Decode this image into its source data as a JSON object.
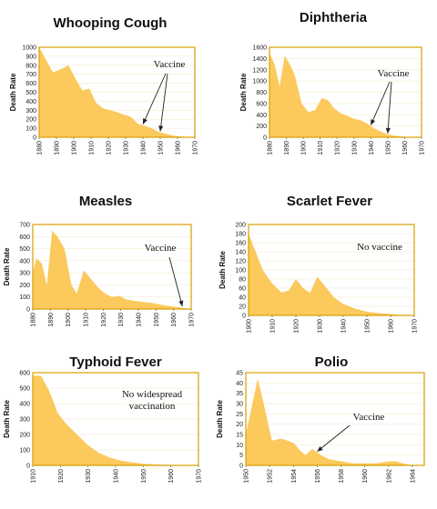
{
  "chart_data": [
    {
      "type": "area",
      "title": "Whooping Cough",
      "ylabel": "Death Rate",
      "xlim": [
        1880,
        1970
      ],
      "ylim": [
        0,
        1000
      ],
      "xticks": [
        1880,
        1890,
        1900,
        1910,
        1920,
        1930,
        1940,
        1950,
        1960,
        1970
      ],
      "yticks": [
        0,
        100,
        200,
        300,
        400,
        500,
        600,
        700,
        800,
        900,
        1000
      ],
      "annotation": "Vaccine",
      "arrow_targets": [
        1940,
        1950
      ],
      "x": [
        1880,
        1884,
        1888,
        1893,
        1897,
        1901,
        1905,
        1909,
        1913,
        1917,
        1921,
        1925,
        1929,
        1933,
        1937,
        1941,
        1945,
        1949,
        1953,
        1957,
        1961,
        1965,
        1970
      ],
      "y": [
        1000,
        860,
        720,
        760,
        800,
        650,
        520,
        540,
        380,
        320,
        300,
        280,
        250,
        230,
        150,
        130,
        100,
        60,
        40,
        20,
        10,
        5,
        0
      ]
    },
    {
      "type": "area",
      "title": "Diphtheria",
      "ylabel": "Death Rate",
      "xlim": [
        1880,
        1970
      ],
      "ylim": [
        0,
        1600
      ],
      "xticks": [
        1880,
        1890,
        1900,
        1910,
        1920,
        1930,
        1940,
        1950,
        1960,
        1970
      ],
      "yticks": [
        0,
        200,
        400,
        600,
        800,
        1000,
        1200,
        1400,
        1600
      ],
      "annotation": "Vaccine",
      "arrow_targets": [
        1940,
        1950
      ],
      "x": [
        1880,
        1883,
        1886,
        1889,
        1892,
        1895,
        1899,
        1903,
        1907,
        1911,
        1915,
        1918,
        1922,
        1926,
        1930,
        1934,
        1938,
        1942,
        1946,
        1950,
        1955,
        1960,
        1965,
        1970
      ],
      "y": [
        1500,
        1300,
        900,
        1450,
        1300,
        1100,
        600,
        450,
        480,
        700,
        650,
        520,
        430,
        380,
        330,
        300,
        240,
        160,
        100,
        50,
        25,
        10,
        5,
        0
      ]
    },
    {
      "type": "area",
      "title": "Measles",
      "ylabel": "Death Rate",
      "xlim": [
        1880,
        1970
      ],
      "ylim": [
        0,
        700
      ],
      "xticks": [
        1880,
        1890,
        1900,
        1910,
        1920,
        1930,
        1940,
        1950,
        1960,
        1970
      ],
      "yticks": [
        0,
        100,
        200,
        300,
        400,
        500,
        600,
        700
      ],
      "annotation": "Vaccine",
      "arrow_targets": [
        1965
      ],
      "x": [
        1880,
        1882,
        1885,
        1888,
        1891,
        1894,
        1898,
        1902,
        1905,
        1909,
        1913,
        1917,
        1921,
        1925,
        1929,
        1933,
        1937,
        1942,
        1948,
        1955,
        1960,
        1965,
        1970
      ],
      "y": [
        300,
        420,
        380,
        200,
        650,
        600,
        500,
        200,
        130,
        320,
        250,
        180,
        130,
        100,
        110,
        80,
        70,
        60,
        50,
        30,
        20,
        10,
        0
      ]
    },
    {
      "type": "area",
      "title": "Scarlet Fever",
      "ylabel": "Death Rate",
      "xlim": [
        1900,
        1970
      ],
      "ylim": [
        0,
        200
      ],
      "xticks": [
        1900,
        1910,
        1920,
        1930,
        1940,
        1950,
        1960,
        1970
      ],
      "yticks": [
        0,
        20,
        40,
        60,
        80,
        100,
        120,
        140,
        160,
        180,
        200
      ],
      "annotation": "No vaccine",
      "arrow_targets": [],
      "x": [
        1900,
        1903,
        1906,
        1910,
        1914,
        1917,
        1920,
        1923,
        1926,
        1929,
        1933,
        1936,
        1940,
        1945,
        1950,
        1955,
        1960,
        1965,
        1970
      ],
      "y": [
        180,
        140,
        100,
        70,
        50,
        55,
        80,
        60,
        50,
        85,
        60,
        40,
        25,
        15,
        8,
        5,
        3,
        1,
        0
      ]
    },
    {
      "type": "area",
      "title": "Typhoid Fever",
      "ylabel": "Death Rate",
      "xlim": [
        1910,
        1970
      ],
      "ylim": [
        0,
        600
      ],
      "xticks": [
        1910,
        1920,
        1930,
        1940,
        1950,
        1960,
        1970
      ],
      "yticks": [
        0,
        100,
        200,
        300,
        400,
        500,
        600
      ],
      "annotation": "No widespread vaccination",
      "arrow_targets": [],
      "x": [
        1910,
        1913,
        1916,
        1919,
        1922,
        1926,
        1930,
        1934,
        1938,
        1942,
        1946,
        1950,
        1955,
        1960,
        1965,
        1970
      ],
      "y": [
        580,
        580,
        480,
        340,
        270,
        200,
        130,
        80,
        50,
        30,
        20,
        10,
        5,
        3,
        2,
        0
      ]
    },
    {
      "type": "area",
      "title": "Polio",
      "ylabel": "Death Rate",
      "xlim": [
        1950,
        1965
      ],
      "ylim": [
        0,
        45
      ],
      "xticks": [
        1950,
        1952,
        1954,
        1956,
        1958,
        1960,
        1962,
        1964
      ],
      "yticks": [
        0,
        5,
        10,
        15,
        20,
        25,
        30,
        35,
        40,
        45
      ],
      "annotation": "Vaccine",
      "arrow_targets": [
        1956
      ],
      "x": [
        1950,
        1951,
        1951.5,
        1952.2,
        1953,
        1954,
        1954.6,
        1955,
        1955.6,
        1956.3,
        1957,
        1958,
        1959,
        1960,
        1961,
        1962,
        1962.6,
        1963.2,
        1964,
        1965
      ],
      "y": [
        15,
        42,
        30,
        12,
        13,
        11,
        7,
        5,
        8,
        5,
        3,
        2,
        1,
        1,
        1,
        2,
        2,
        1,
        0,
        0
      ]
    }
  ]
}
